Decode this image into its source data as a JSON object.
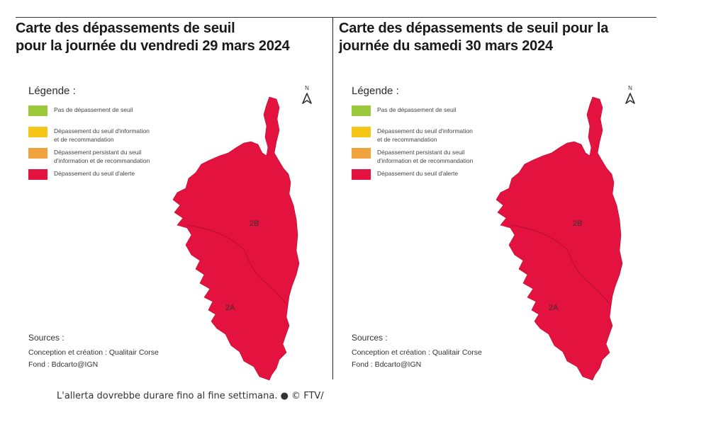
{
  "colors": {
    "green": "#9cc83b",
    "yellow": "#f5c518",
    "orange": "#f0a23c",
    "red": "#e3123f",
    "border": "#b40d33"
  },
  "legend": {
    "title": "Légende :",
    "items": [
      {
        "label": "Pas de dépassement de seuil",
        "color": "green"
      },
      {
        "label": "Dépassement du seuil d'information\net de recommandation",
        "color": "yellow"
      },
      {
        "label": "Dépassement persistant du seuil\nd'information et de recommandation",
        "color": "orange"
      },
      {
        "label": "Dépassement du seuil d'alerte",
        "color": "red"
      }
    ]
  },
  "north_label": "N",
  "north_icon": "north-arrow-icon",
  "maps": [
    {
      "title_line1": "Carte des dépassements de seuil",
      "title_line2": "pour la journée du vendredi 29 mars 2024",
      "dept_north": "2B",
      "dept_south": "2A",
      "fill_color": "red"
    },
    {
      "title_line1": "Carte des dépassements de seuil pour la",
      "title_line2": "journée du samedi 30 mars 2024",
      "dept_north": "2B",
      "dept_south": "2A",
      "fill_color": "red"
    }
  ],
  "sources": {
    "title": "Sources :",
    "line1": "Conception et création : Qualitair Corse",
    "line2": "Fond : Bdcarto@IGN"
  },
  "caption": "L'allerta dovrebbe durare fino al fine settimana. ● © FTV/"
}
